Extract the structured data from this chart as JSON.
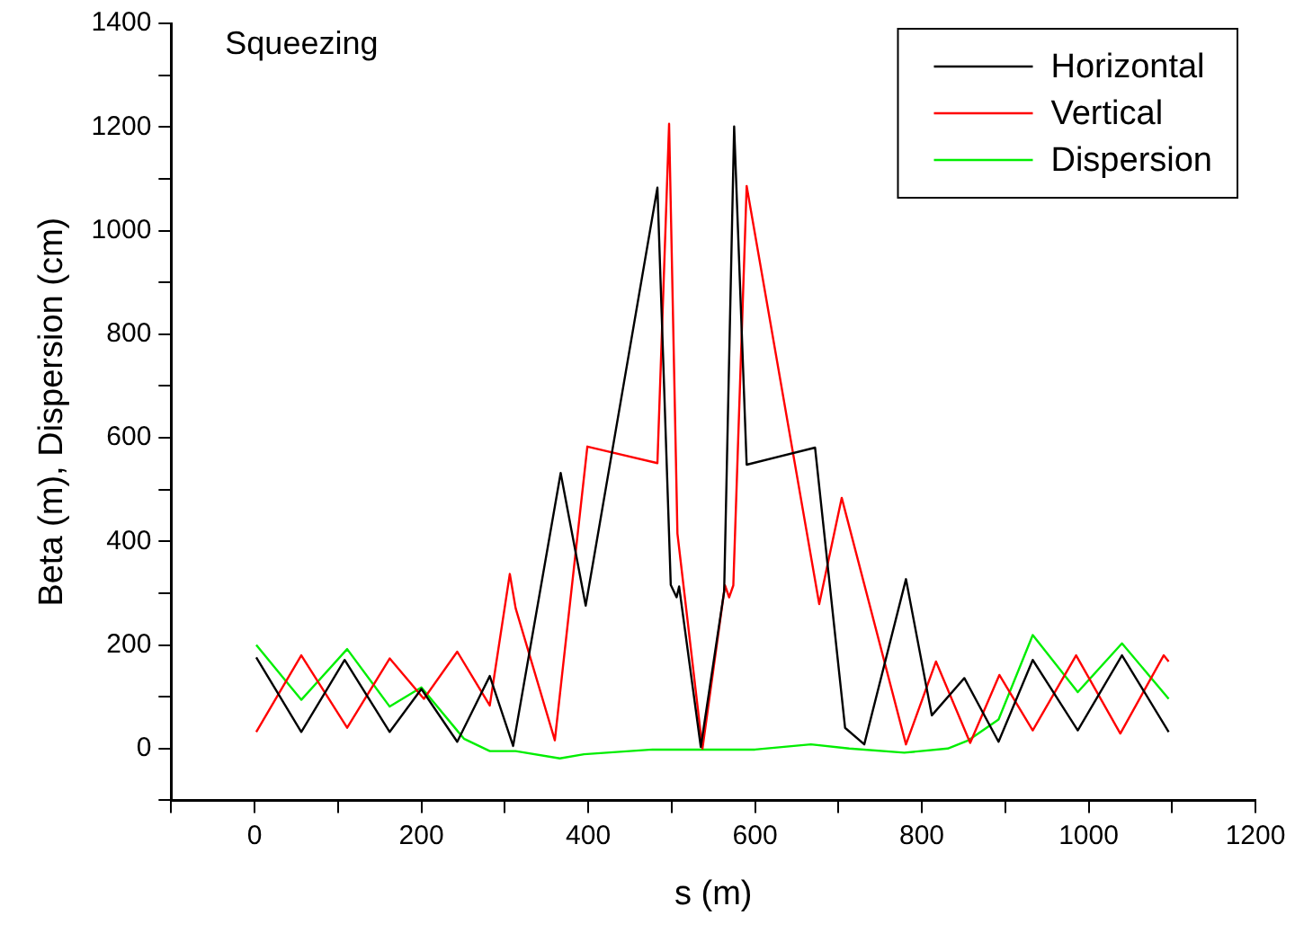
{
  "chart_data": {
    "type": "line",
    "xlabel": "s (m)",
    "ylabel": "Beta (m), Dispersion (cm)",
    "annotations": [
      "Squeezing"
    ],
    "xlim": [
      -100,
      1200
    ],
    "ylim": [
      -100,
      1400
    ],
    "xticks": [
      {
        "value": -100,
        "label": null
      },
      0,
      {
        "value": 100,
        "label": null
      },
      200,
      {
        "value": 300,
        "label": null
      },
      400,
      {
        "value": 500,
        "label": null
      },
      600,
      {
        "value": 700,
        "label": null
      },
      800,
      {
        "value": 900,
        "label": null
      },
      1000,
      {
        "value": 1100,
        "label": null
      },
      1200
    ],
    "yticks": [
      {
        "value": -100,
        "label": null
      },
      0,
      {
        "value": 100,
        "label": null
      },
      200,
      {
        "value": 300,
        "label": null
      },
      400,
      {
        "value": 500,
        "label": null
      },
      600,
      {
        "value": 700,
        "label": null
      },
      800,
      {
        "value": 900,
        "label": null
      },
      1000,
      {
        "value": 1100,
        "label": null
      },
      1200,
      {
        "value": 1300,
        "label": null
      },
      1400
    ],
    "grid": false,
    "legend": "top right",
    "marker": "none",
    "line_style": "solid",
    "series": [
      {
        "name": "Horizontal",
        "color": "#000000",
        "x": [
          2,
          56,
          108,
          162,
          200,
          243,
          282,
          310,
          367,
          397,
          483,
          499,
          506,
          509,
          535,
          563,
          575,
          590,
          672,
          708,
          731,
          781,
          812,
          851,
          892,
          933,
          987,
          1040,
          1096
        ],
        "values": [
          176,
          32,
          171,
          32,
          115,
          13,
          140,
          5,
          532,
          276,
          1083,
          316,
          292,
          313,
          3,
          303,
          1201,
          548,
          581,
          40,
          8,
          327,
          64,
          136,
          13,
          171,
          35,
          180,
          32
        ]
      },
      {
        "name": "Vertical",
        "color": "#ff0000",
        "x": [
          2,
          56,
          111,
          162,
          203,
          243,
          282,
          306,
          313,
          360,
          399,
          483,
          497,
          507,
          537,
          564,
          569,
          574,
          590,
          677,
          704,
          781,
          817,
          858,
          893,
          933,
          985,
          1038,
          1090,
          1096
        ],
        "values": [
          32,
          180,
          40,
          174,
          96,
          187,
          83,
          337,
          271,
          16,
          583,
          551,
          1206,
          415,
          0,
          315,
          292,
          315,
          1086,
          279,
          484,
          8,
          168,
          11,
          142,
          35,
          180,
          29,
          180,
          168
        ]
      },
      {
        "name": "Dispersion",
        "color": "#00ee00",
        "x": [
          2,
          56,
          111,
          162,
          200,
          251,
          282,
          313,
          366,
          395,
          477,
          600,
          667,
          713,
          779,
          831,
          856,
          892,
          933,
          987,
          1040,
          1096
        ],
        "values": [
          200,
          94,
          192,
          81,
          118,
          19,
          -5,
          -5,
          -19,
          -11,
          -2,
          -2,
          8,
          0,
          -8,
          0,
          16,
          56,
          219,
          109,
          203,
          96
        ]
      }
    ]
  }
}
